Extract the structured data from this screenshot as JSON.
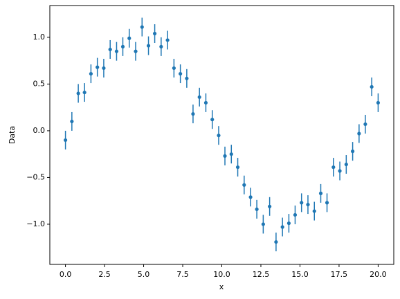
{
  "chart_data": {
    "type": "errorbar",
    "xlabel": "x",
    "ylabel": "Data",
    "color": "#1f77b4",
    "grid": false,
    "x": [
      0,
      0.41,
      0.82,
      1.22,
      1.63,
      2.04,
      2.45,
      2.86,
      3.27,
      3.67,
      4.08,
      4.49,
      4.9,
      5.31,
      5.71,
      6.12,
      6.53,
      6.94,
      7.35,
      7.76,
      8.16,
      8.57,
      8.98,
      9.39,
      9.8,
      10.2,
      10.61,
      11.02,
      11.43,
      11.84,
      12.24,
      12.65,
      13.06,
      13.47,
      13.88,
      14.29,
      14.69,
      15.1,
      15.51,
      15.92,
      16.33,
      16.73,
      17.14,
      17.55,
      17.96,
      18.37,
      18.78,
      19.18,
      19.59,
      20
    ],
    "values": [
      -0.1,
      0.1,
      0.4,
      0.41,
      0.61,
      0.68,
      0.67,
      0.87,
      0.85,
      0.9,
      0.99,
      0.85,
      1.11,
      0.91,
      1.04,
      0.9,
      0.97,
      0.67,
      0.61,
      0.56,
      0.18,
      0.36,
      0.3,
      0.12,
      -0.05,
      -0.27,
      -0.25,
      -0.39,
      -0.58,
      -0.71,
      -0.84,
      -1.0,
      -0.81,
      -1.19,
      -1.03,
      -0.99,
      -0.9,
      -0.77,
      -0.79,
      -0.86,
      -0.67,
      -0.77,
      -0.39,
      -0.43,
      -0.36,
      -0.22,
      -0.03,
      0.07,
      0.47,
      0.3
    ],
    "errors": [
      0.1,
      0.1,
      0.1,
      0.1,
      0.1,
      0.1,
      0.1,
      0.1,
      0.1,
      0.1,
      0.1,
      0.1,
      0.1,
      0.1,
      0.1,
      0.1,
      0.1,
      0.1,
      0.1,
      0.1,
      0.1,
      0.1,
      0.1,
      0.1,
      0.1,
      0.1,
      0.1,
      0.1,
      0.1,
      0.1,
      0.1,
      0.1,
      0.1,
      0.1,
      0.1,
      0.1,
      0.1,
      0.1,
      0.1,
      0.1,
      0.1,
      0.1,
      0.1,
      0.1,
      0.1,
      0.1,
      0.1,
      0.1,
      0.1,
      0.1
    ],
    "xlim": [
      -1,
      21
    ],
    "ylim": [
      -1.43,
      1.34
    ],
    "xticks": [
      {
        "value": 0,
        "label": "0.0"
      },
      2.5,
      {
        "value": 5,
        "label": "5.0"
      },
      7.5,
      {
        "value": 10,
        "label": "10.0"
      },
      12.5,
      {
        "value": 15,
        "label": "15.0"
      },
      17.5,
      {
        "value": 20,
        "label": "20.0"
      }
    ],
    "yticks": [
      {
        "value": -1,
        "label": "−1.0"
      },
      {
        "value": -0.5,
        "label": "−0.5"
      },
      {
        "value": 0,
        "label": "0.0"
      },
      0.5,
      {
        "value": 1,
        "label": "1.0"
      }
    ]
  }
}
